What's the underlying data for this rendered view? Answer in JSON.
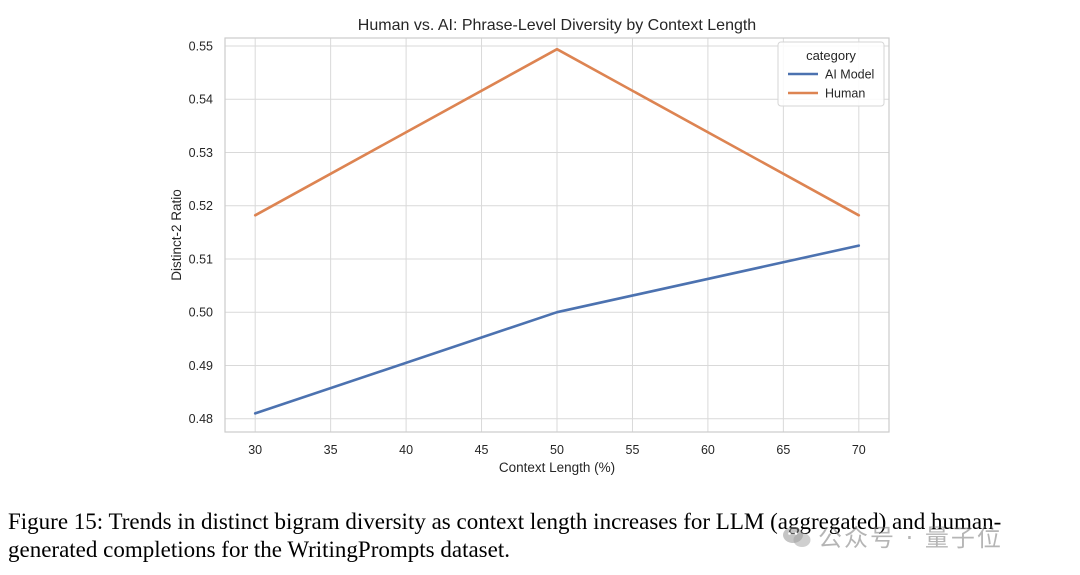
{
  "chart_data": {
    "type": "line",
    "title": "Human vs. AI: Phrase-Level Diversity by Context Length",
    "xlabel": "Context Length (%)",
    "ylabel": "Distinct-2 Ratio",
    "x_ticks": [
      30,
      35,
      40,
      45,
      50,
      55,
      60,
      65,
      70
    ],
    "y_ticks": [
      "0.48",
      "0.49",
      "0.50",
      "0.51",
      "0.52",
      "0.53",
      "0.54",
      "0.55"
    ],
    "xlim": [
      28,
      72
    ],
    "ylim": [
      0.4775,
      0.5515
    ],
    "grid": true,
    "legend": {
      "title": "category",
      "position": "top-right"
    },
    "series": [
      {
        "name": "AI Model",
        "color": "#4c72b0",
        "x": [
          30,
          50,
          70
        ],
        "y": [
          0.481,
          0.5,
          0.5125
        ]
      },
      {
        "name": "Human",
        "color": "#dd8452",
        "x": [
          30,
          50,
          70
        ],
        "y": [
          0.5182,
          0.5494,
          0.5182
        ]
      }
    ]
  },
  "caption": "Figure 15: Trends in distinct bigram diversity as context length increases for LLM (aggregated) and human-generated completions for the WritingPrompts dataset.",
  "watermark": "公众号 · 量子位"
}
